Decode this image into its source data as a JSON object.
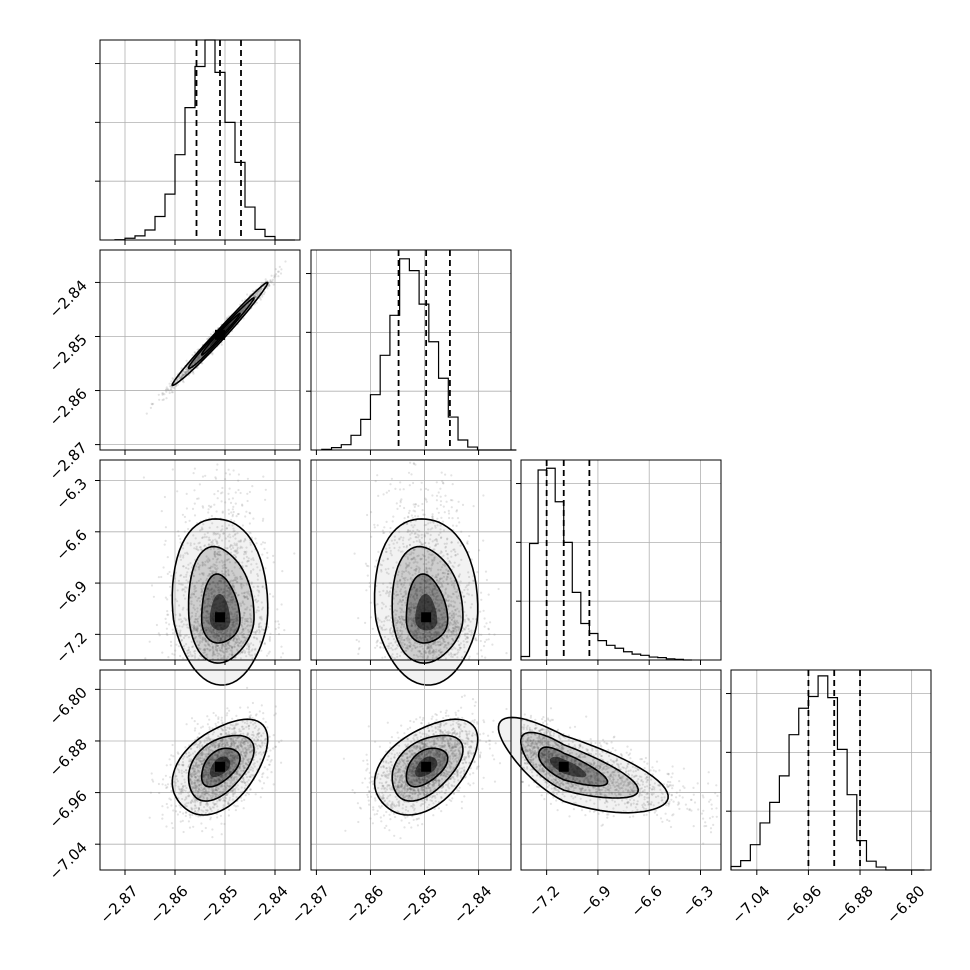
{
  "chart_data": {
    "type": "corner",
    "parameters": 4,
    "axes_ranges": [
      [
        -2.875,
        -2.835
      ],
      [
        -2.871,
        -2.834
      ],
      [
        -7.35,
        -6.18
      ],
      [
        -7.08,
        -6.77
      ]
    ],
    "diagonal_limits_y": [
      [
        0,
        3400
      ],
      [
        0,
        3400
      ],
      [
        0,
        3400
      ],
      [
        0,
        3400
      ]
    ],
    "diagonal_yticks": [
      [
        1000,
        2000,
        3000
      ],
      [
        1000,
        2000,
        3000
      ],
      [
        1000,
        2000,
        3000
      ],
      [
        1000,
        2000,
        3000
      ]
    ],
    "x_tick_labels": [
      [
        "−2.87",
        "−2.86",
        "−2.85",
        "−2.84"
      ],
      [
        "−2.87",
        "−2.86",
        "−2.85",
        "−2.84"
      ],
      [
        "−7.2",
        "−6.9",
        "−6.6",
        "−6.3"
      ],
      [
        "−7.04",
        "−6.96",
        "−6.88",
        "−6.80"
      ]
    ],
    "x_tick_values": [
      [
        -2.87,
        -2.86,
        -2.85,
        -2.84
      ],
      [
        -2.87,
        -2.86,
        -2.85,
        -2.84
      ],
      [
        -7.2,
        -6.9,
        -6.6,
        -6.3
      ],
      [
        -7.04,
        -6.96,
        -6.88,
        -6.8
      ]
    ],
    "y_tick_labels": {
      "row1": [
        "−2.84",
        "−2.85",
        "−2.86",
        "−2.87"
      ],
      "row2": [
        "−6.3",
        "−6.6",
        "−6.9",
        "−7.2"
      ],
      "row3": [
        "−6.80",
        "−6.88",
        "−6.96",
        "−7.04"
      ]
    },
    "y_tick_values": {
      "row1": [
        -2.84,
        -2.85,
        -2.86,
        -2.87
      ],
      "row2": [
        -6.3,
        -6.6,
        -6.9,
        -7.2
      ],
      "row3": [
        -6.8,
        -6.88,
        -6.96,
        -7.04
      ]
    },
    "histograms": [
      {
        "bin_start": -2.872,
        "bin_width": 0.002,
        "counts": [
          5,
          30,
          70,
          170,
          400,
          780,
          1450,
          2250,
          2950,
          3400,
          2850,
          2000,
          1320,
          560,
          180,
          60,
          0,
          0
        ]
      },
      {
        "bin_start": -2.869,
        "bin_width": 0.0018,
        "counts": [
          10,
          40,
          90,
          250,
          520,
          940,
          1610,
          2290,
          3250,
          3050,
          2480,
          1840,
          1220,
          560,
          170,
          50,
          0,
          0,
          0,
          0
        ]
      },
      {
        "bin_start": -7.35,
        "bin_width": 0.05,
        "counts": [
          60,
          1980,
          3230,
          3260,
          2690,
          2000,
          1150,
          620,
          450,
          330,
          250,
          200,
          140,
          100,
          80,
          50,
          40,
          20,
          10,
          0
        ]
      },
      {
        "bin_start": -7.08,
        "bin_width": 0.015,
        "counts": [
          60,
          160,
          430,
          800,
          1150,
          1600,
          2300,
          2750,
          2950,
          3300,
          2930,
          2050,
          1280,
          500,
          150,
          50,
          0,
          0,
          0,
          0
        ]
      }
    ],
    "quantiles": [
      [
        -2.8557,
        -2.851,
        -2.8468
      ],
      [
        -2.8548,
        -2.8497,
        -2.8453
      ],
      [
        -7.2,
        -7.1,
        -6.95
      ],
      [
        -6.96,
        -6.92,
        -6.88
      ]
    ],
    "centers": [
      -2.851,
      -2.8497,
      -7.1,
      -6.92
    ],
    "sigmas": [
      0.0045,
      0.0045,
      0.18,
      0.035
    ],
    "correlations": [
      [
        0,
        1,
        0.99
      ],
      [
        0,
        2,
        -0.05
      ],
      [
        1,
        2,
        -0.05
      ],
      [
        0,
        3,
        0.45
      ],
      [
        1,
        3,
        0.45
      ],
      [
        2,
        3,
        -0.72
      ]
    ],
    "scatter_points_per_panel": 1800,
    "scatter_color": "#808080",
    "contour_color": "#000000",
    "density_fill_color": "#000000",
    "grid": true
  }
}
